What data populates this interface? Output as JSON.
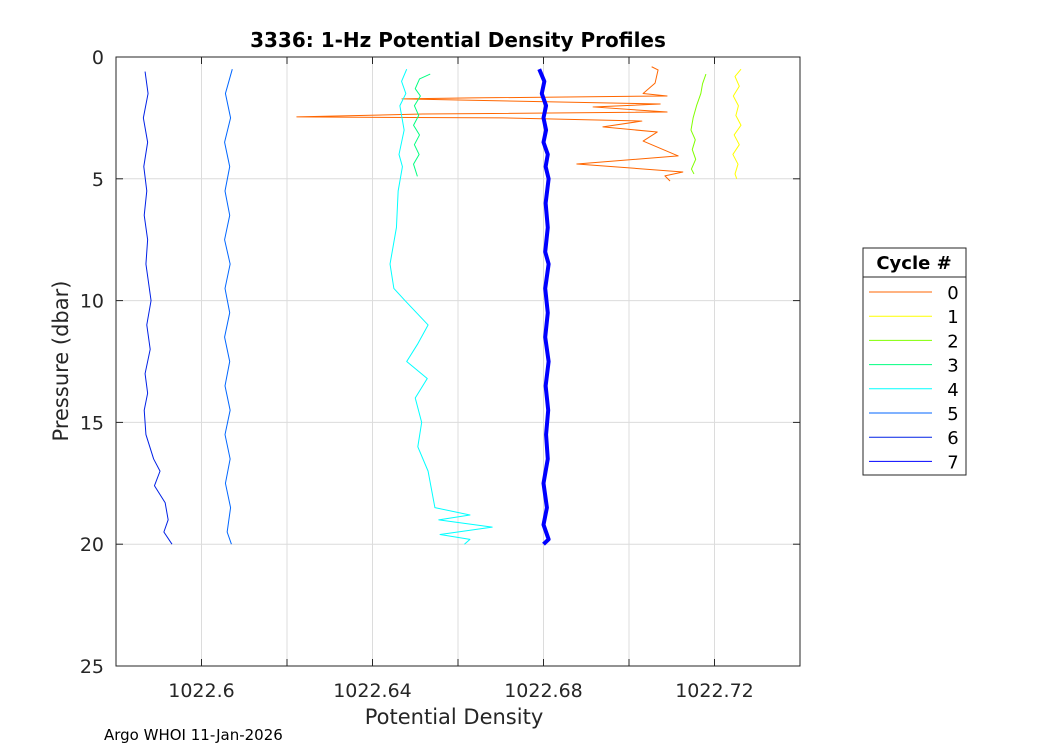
{
  "chart_data": {
    "type": "line",
    "title": "3336: 1-Hz Potential Density Profiles",
    "xlabel": "Potential Density",
    "ylabel": "Pressure (dbar)",
    "xlim": [
      1022.58,
      1022.74
    ],
    "ylim": [
      0,
      25
    ],
    "y_reversed": true,
    "grid": true,
    "xticks": [
      1022.6,
      1022.64,
      1022.68,
      1022.72
    ],
    "xtick_labels": [
      "1022.6",
      "1022.64",
      "1022.68",
      "1022.72"
    ],
    "xgrid": [
      1022.6,
      1022.62,
      1022.64,
      1022.66,
      1022.68,
      1022.7,
      1022.72
    ],
    "yticks": [
      0,
      5,
      10,
      15,
      20,
      25
    ],
    "ytick_labels": [
      "0",
      "5",
      "10",
      "15",
      "20",
      "25"
    ],
    "legend_title": "Cycle #",
    "legend_position": "outside-right",
    "footer": "Argo WHOI 11-Jan-2026",
    "series": [
      {
        "name": "0",
        "color": "#ff6600",
        "width": 1,
        "points": [
          [
            1022.7053,
            0.4
          ],
          [
            1022.7068,
            0.53
          ],
          [
            1022.7061,
            1.07
          ],
          [
            1022.7033,
            1.5
          ],
          [
            1022.7089,
            1.6
          ],
          [
            1022.6633,
            1.68
          ],
          [
            1022.6469,
            1.72
          ],
          [
            1022.7073,
            1.93
          ],
          [
            1022.6916,
            2.05
          ],
          [
            1022.7089,
            2.26
          ],
          [
            1022.6518,
            2.34
          ],
          [
            1022.6223,
            2.46
          ],
          [
            1022.6705,
            2.5
          ],
          [
            1022.703,
            2.63
          ],
          [
            1022.6939,
            2.87
          ],
          [
            1022.7066,
            3.08
          ],
          [
            1022.7033,
            3.45
          ],
          [
            1022.7115,
            4.06
          ],
          [
            1022.6878,
            4.39
          ],
          [
            1022.7126,
            4.72
          ],
          [
            1022.7084,
            4.88
          ],
          [
            1022.7096,
            5.09
          ]
        ]
      },
      {
        "name": "1",
        "color": "#ffff00",
        "width": 1,
        "points": [
          [
            1022.7262,
            0.5
          ],
          [
            1022.7248,
            0.8
          ],
          [
            1022.7258,
            1.2
          ],
          [
            1022.7244,
            1.6
          ],
          [
            1022.7256,
            2.0
          ],
          [
            1022.725,
            2.4
          ],
          [
            1022.7262,
            2.8
          ],
          [
            1022.7246,
            3.2
          ],
          [
            1022.7258,
            3.6
          ],
          [
            1022.7243,
            4.0
          ],
          [
            1022.7255,
            4.4
          ],
          [
            1022.7248,
            4.8
          ],
          [
            1022.7252,
            5.0
          ]
        ]
      },
      {
        "name": "2",
        "color": "#80ff00",
        "width": 1,
        "points": [
          [
            1022.718,
            0.7
          ],
          [
            1022.7172,
            1.1
          ],
          [
            1022.7168,
            1.5
          ],
          [
            1022.7158,
            2.0
          ],
          [
            1022.715,
            2.5
          ],
          [
            1022.7145,
            3.0
          ],
          [
            1022.7155,
            3.4
          ],
          [
            1022.7148,
            3.8
          ],
          [
            1022.7156,
            4.2
          ],
          [
            1022.7146,
            4.6
          ],
          [
            1022.7152,
            4.8
          ]
        ]
      },
      {
        "name": "3",
        "color": "#00ff80",
        "width": 1,
        "points": [
          [
            1022.6535,
            0.7
          ],
          [
            1022.651,
            0.9
          ],
          [
            1022.65,
            1.3
          ],
          [
            1022.6512,
            1.6
          ],
          [
            1022.6498,
            2.0
          ],
          [
            1022.6508,
            2.4
          ],
          [
            1022.6496,
            2.8
          ],
          [
            1022.651,
            3.2
          ],
          [
            1022.6498,
            3.6
          ],
          [
            1022.6509,
            4.0
          ],
          [
            1022.6496,
            4.4
          ],
          [
            1022.6505,
            4.9
          ]
        ]
      },
      {
        "name": "4",
        "color": "#00ffff",
        "width": 1,
        "points": [
          [
            1022.648,
            0.5
          ],
          [
            1022.6468,
            1.0
          ],
          [
            1022.6478,
            1.5
          ],
          [
            1022.6464,
            2.0
          ],
          [
            1022.6474,
            3.0
          ],
          [
            1022.6462,
            4.0
          ],
          [
            1022.647,
            4.5
          ],
          [
            1022.646,
            5.5
          ],
          [
            1022.6456,
            7.0
          ],
          [
            1022.6441,
            8.5
          ],
          [
            1022.645,
            9.5
          ],
          [
            1022.6476,
            10.0
          ],
          [
            1022.653,
            11.0
          ],
          [
            1022.6505,
            11.8
          ],
          [
            1022.648,
            12.5
          ],
          [
            1022.6528,
            13.2
          ],
          [
            1022.65,
            14.0
          ],
          [
            1022.6515,
            15.0
          ],
          [
            1022.6506,
            16.0
          ],
          [
            1022.653,
            17.0
          ],
          [
            1022.6546,
            18.5
          ],
          [
            1022.6628,
            18.8
          ],
          [
            1022.6555,
            19.0
          ],
          [
            1022.668,
            19.3
          ],
          [
            1022.6558,
            19.6
          ],
          [
            1022.6628,
            19.8
          ],
          [
            1022.6615,
            20.0
          ]
        ]
      },
      {
        "name": "5",
        "color": "#0066ff",
        "width": 1,
        "points": [
          [
            1022.6072,
            0.5
          ],
          [
            1022.6056,
            1.5
          ],
          [
            1022.6068,
            2.5
          ],
          [
            1022.6054,
            3.5
          ],
          [
            1022.6066,
            4.5
          ],
          [
            1022.6055,
            5.5
          ],
          [
            1022.6066,
            6.5
          ],
          [
            1022.6054,
            7.5
          ],
          [
            1022.6067,
            8.5
          ],
          [
            1022.6055,
            9.5
          ],
          [
            1022.6066,
            10.5
          ],
          [
            1022.6054,
            11.5
          ],
          [
            1022.6066,
            12.5
          ],
          [
            1022.6055,
            13.5
          ],
          [
            1022.6067,
            14.5
          ],
          [
            1022.6055,
            15.5
          ],
          [
            1022.6067,
            16.5
          ],
          [
            1022.6056,
            17.5
          ],
          [
            1022.6068,
            18.5
          ],
          [
            1022.606,
            19.5
          ],
          [
            1022.607,
            20.0
          ]
        ]
      },
      {
        "name": "6",
        "color": "#0020e6",
        "width": 1,
        "points": [
          [
            1022.5868,
            0.6
          ],
          [
            1022.5875,
            1.5
          ],
          [
            1022.5864,
            2.5
          ],
          [
            1022.5874,
            3.5
          ],
          [
            1022.5865,
            4.5
          ],
          [
            1022.5872,
            5.5
          ],
          [
            1022.5866,
            6.5
          ],
          [
            1022.5874,
            7.5
          ],
          [
            1022.587,
            8.5
          ],
          [
            1022.5882,
            10.0
          ],
          [
            1022.5872,
            11.0
          ],
          [
            1022.588,
            12.0
          ],
          [
            1022.5868,
            13.0
          ],
          [
            1022.5874,
            13.8
          ],
          [
            1022.5866,
            14.5
          ],
          [
            1022.587,
            15.5
          ],
          [
            1022.5888,
            16.5
          ],
          [
            1022.5903,
            17.0
          ],
          [
            1022.589,
            17.6
          ],
          [
            1022.5915,
            18.3
          ],
          [
            1022.5922,
            19.0
          ],
          [
            1022.5912,
            19.5
          ],
          [
            1022.5931,
            20.0
          ]
        ]
      },
      {
        "name": "7",
        "color": "#0000ff",
        "width": 4,
        "points": [
          [
            1022.679,
            0.5
          ],
          [
            1022.6802,
            1.0
          ],
          [
            1022.6796,
            1.5
          ],
          [
            1022.6806,
            2.0
          ],
          [
            1022.68,
            2.5
          ],
          [
            1022.6806,
            3.0
          ],
          [
            1022.68,
            3.5
          ],
          [
            1022.681,
            4.0
          ],
          [
            1022.6805,
            4.5
          ],
          [
            1022.6812,
            5.0
          ],
          [
            1022.6805,
            6.0
          ],
          [
            1022.681,
            7.0
          ],
          [
            1022.6804,
            8.0
          ],
          [
            1022.6812,
            8.5
          ],
          [
            1022.6804,
            9.5
          ],
          [
            1022.681,
            10.5
          ],
          [
            1022.6804,
            11.5
          ],
          [
            1022.6812,
            12.5
          ],
          [
            1022.6805,
            13.5
          ],
          [
            1022.6811,
            14.5
          ],
          [
            1022.6806,
            15.5
          ],
          [
            1022.681,
            16.5
          ],
          [
            1022.68,
            17.5
          ],
          [
            1022.6808,
            18.5
          ],
          [
            1022.68,
            19.2
          ],
          [
            1022.6812,
            19.8
          ],
          [
            1022.68,
            20.0
          ]
        ]
      }
    ]
  }
}
